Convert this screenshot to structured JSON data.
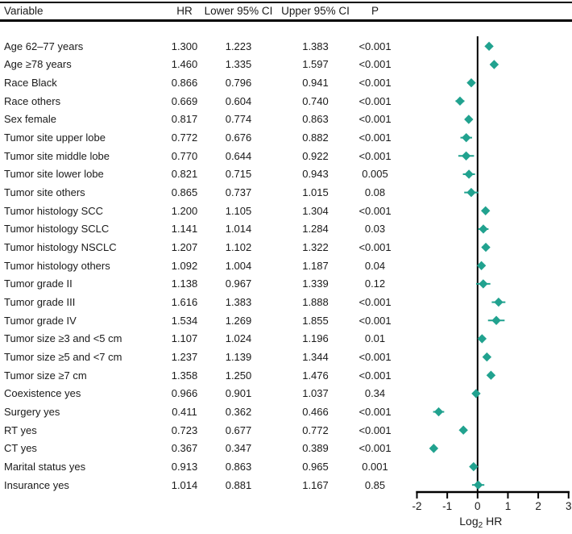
{
  "table": {
    "headers": {
      "variable": "Variable",
      "hr": "HR",
      "lower": "Lower 95% CI",
      "upper": "Upper 95% CI",
      "p": "P"
    },
    "rows": [
      {
        "variable": "Age 62–77 years",
        "hr": "1.300",
        "lower": "1.223",
        "upper": "1.383",
        "p": "<0.001"
      },
      {
        "variable": "Age ≥78 years",
        "hr": "1.460",
        "lower": "1.335",
        "upper": "1.597",
        "p": "<0.001"
      },
      {
        "variable": "Race Black",
        "hr": "0.866",
        "lower": "0.796",
        "upper": "0.941",
        "p": "<0.001"
      },
      {
        "variable": "Race others",
        "hr": "0.669",
        "lower": "0.604",
        "upper": "0.740",
        "p": "<0.001"
      },
      {
        "variable": "Sex female",
        "hr": "0.817",
        "lower": "0.774",
        "upper": "0.863",
        "p": "<0.001"
      },
      {
        "variable": "Tumor site upper lobe",
        "hr": "0.772",
        "lower": "0.676",
        "upper": "0.882",
        "p": "<0.001"
      },
      {
        "variable": "Tumor site middle lobe",
        "hr": "0.770",
        "lower": "0.644",
        "upper": "0.922",
        "p": "<0.001"
      },
      {
        "variable": "Tumor site lower lobe",
        "hr": "0.821",
        "lower": "0.715",
        "upper": "0.943",
        "p": "0.005"
      },
      {
        "variable": "Tumor site others",
        "hr": "0.865",
        "lower": "0.737",
        "upper": "1.015",
        "p": "0.08"
      },
      {
        "variable": "Tumor histology SCC",
        "hr": "1.200",
        "lower": "1.105",
        "upper": "1.304",
        "p": "<0.001"
      },
      {
        "variable": "Tumor histology SCLC",
        "hr": "1.141",
        "lower": "1.014",
        "upper": "1.284",
        "p": "0.03"
      },
      {
        "variable": "Tumor histology NSCLC",
        "hr": "1.207",
        "lower": "1.102",
        "upper": "1.322",
        "p": "<0.001"
      },
      {
        "variable": "Tumor histology others",
        "hr": "1.092",
        "lower": "1.004",
        "upper": "1.187",
        "p": "0.04"
      },
      {
        "variable": "Tumor grade II",
        "hr": "1.138",
        "lower": "0.967",
        "upper": "1.339",
        "p": "0.12"
      },
      {
        "variable": "Tumor grade III",
        "hr": "1.616",
        "lower": "1.383",
        "upper": "1.888",
        "p": "<0.001"
      },
      {
        "variable": "Tumor grade IV",
        "hr": "1.534",
        "lower": "1.269",
        "upper": "1.855",
        "p": "<0.001"
      },
      {
        "variable": "Tumor size ≥3 and <5 cm",
        "hr": "1.107",
        "lower": "1.024",
        "upper": "1.196",
        "p": "0.01"
      },
      {
        "variable": "Tumor size ≥5 and <7 cm",
        "hr": "1.237",
        "lower": "1.139",
        "upper": "1.344",
        "p": "<0.001"
      },
      {
        "variable": "Tumor size ≥7 cm",
        "hr": "1.358",
        "lower": "1.250",
        "upper": "1.476",
        "p": "<0.001"
      },
      {
        "variable": "Coexistence yes",
        "hr": "0.966",
        "lower": "0.901",
        "upper": "1.037",
        "p": "0.34"
      },
      {
        "variable": "Surgery yes",
        "hr": "0.411",
        "lower": "0.362",
        "upper": "0.466",
        "p": "<0.001"
      },
      {
        "variable": "RT yes",
        "hr": "0.723",
        "lower": "0.677",
        "upper": "0.772",
        "p": "<0.001"
      },
      {
        "variable": "CT yes",
        "hr": "0.367",
        "lower": "0.347",
        "upper": "0.389",
        "p": "<0.001"
      },
      {
        "variable": "Marital status yes",
        "hr": "0.913",
        "lower": "0.863",
        "upper": "0.965",
        "p": "0.001"
      },
      {
        "variable": "Insurance yes",
        "hr": "1.014",
        "lower": "0.881",
        "upper": "1.167",
        "p": "0.85"
      }
    ]
  },
  "chart_data": {
    "type": "scatter",
    "subtype": "forest-plot",
    "title": "",
    "xlabel": "Log2 HR",
    "xlim": [
      -2,
      3
    ],
    "xticks": [
      -2,
      -1,
      0,
      1,
      2,
      3
    ],
    "x_scale": "log2 of hazard ratio",
    "reference_line_at": 0,
    "grid": false,
    "legend": "none",
    "categories": [
      "Age 62–77 years",
      "Age ≥78 years",
      "Race Black",
      "Race others",
      "Sex female",
      "Tumor site upper lobe",
      "Tumor site middle lobe",
      "Tumor site lower lobe",
      "Tumor site others",
      "Tumor histology SCC",
      "Tumor histology SCLC",
      "Tumor histology NSCLC",
      "Tumor histology others",
      "Tumor grade II",
      "Tumor grade III",
      "Tumor grade IV",
      "Tumor size ≥3 and <5 cm",
      "Tumor size ≥5 and <7 cm",
      "Tumor size ≥7 cm",
      "Coexistence yes",
      "Surgery yes",
      "RT yes",
      "CT yes",
      "Marital status yes",
      "Insurance yes"
    ],
    "series": [
      {
        "name": "HR",
        "values": [
          1.3,
          1.46,
          0.866,
          0.669,
          0.817,
          0.772,
          0.77,
          0.821,
          0.865,
          1.2,
          1.141,
          1.207,
          1.092,
          1.138,
          1.616,
          1.534,
          1.107,
          1.237,
          1.358,
          0.966,
          0.411,
          0.723,
          0.367,
          0.913,
          1.014
        ]
      },
      {
        "name": "Lower 95% CI",
        "values": [
          1.223,
          1.335,
          0.796,
          0.604,
          0.774,
          0.676,
          0.644,
          0.715,
          0.737,
          1.105,
          1.014,
          1.102,
          1.004,
          0.967,
          1.383,
          1.269,
          1.024,
          1.139,
          1.25,
          0.901,
          0.362,
          0.677,
          0.347,
          0.863,
          0.881
        ]
      },
      {
        "name": "Upper 95% CI",
        "values": [
          1.383,
          1.597,
          0.941,
          0.74,
          0.863,
          0.882,
          0.922,
          0.943,
          1.015,
          1.304,
          1.284,
          1.322,
          1.187,
          1.339,
          1.888,
          1.855,
          1.196,
          1.344,
          1.476,
          1.037,
          0.466,
          0.772,
          0.389,
          0.965,
          1.167
        ]
      }
    ],
    "p_values": [
      "<0.001",
      "<0.001",
      "<0.001",
      "<0.001",
      "<0.001",
      "<0.001",
      "<0.001",
      "0.005",
      "0.08",
      "<0.001",
      "0.03",
      "<0.001",
      "0.04",
      "0.12",
      "<0.001",
      "<0.001",
      "0.01",
      "<0.001",
      "<0.001",
      "0.34",
      "<0.001",
      "<0.001",
      "<0.001",
      "0.001",
      "0.85"
    ]
  },
  "colors": {
    "marker": "#21A28F",
    "axis": "#000000",
    "text": "#1a1a1a"
  }
}
